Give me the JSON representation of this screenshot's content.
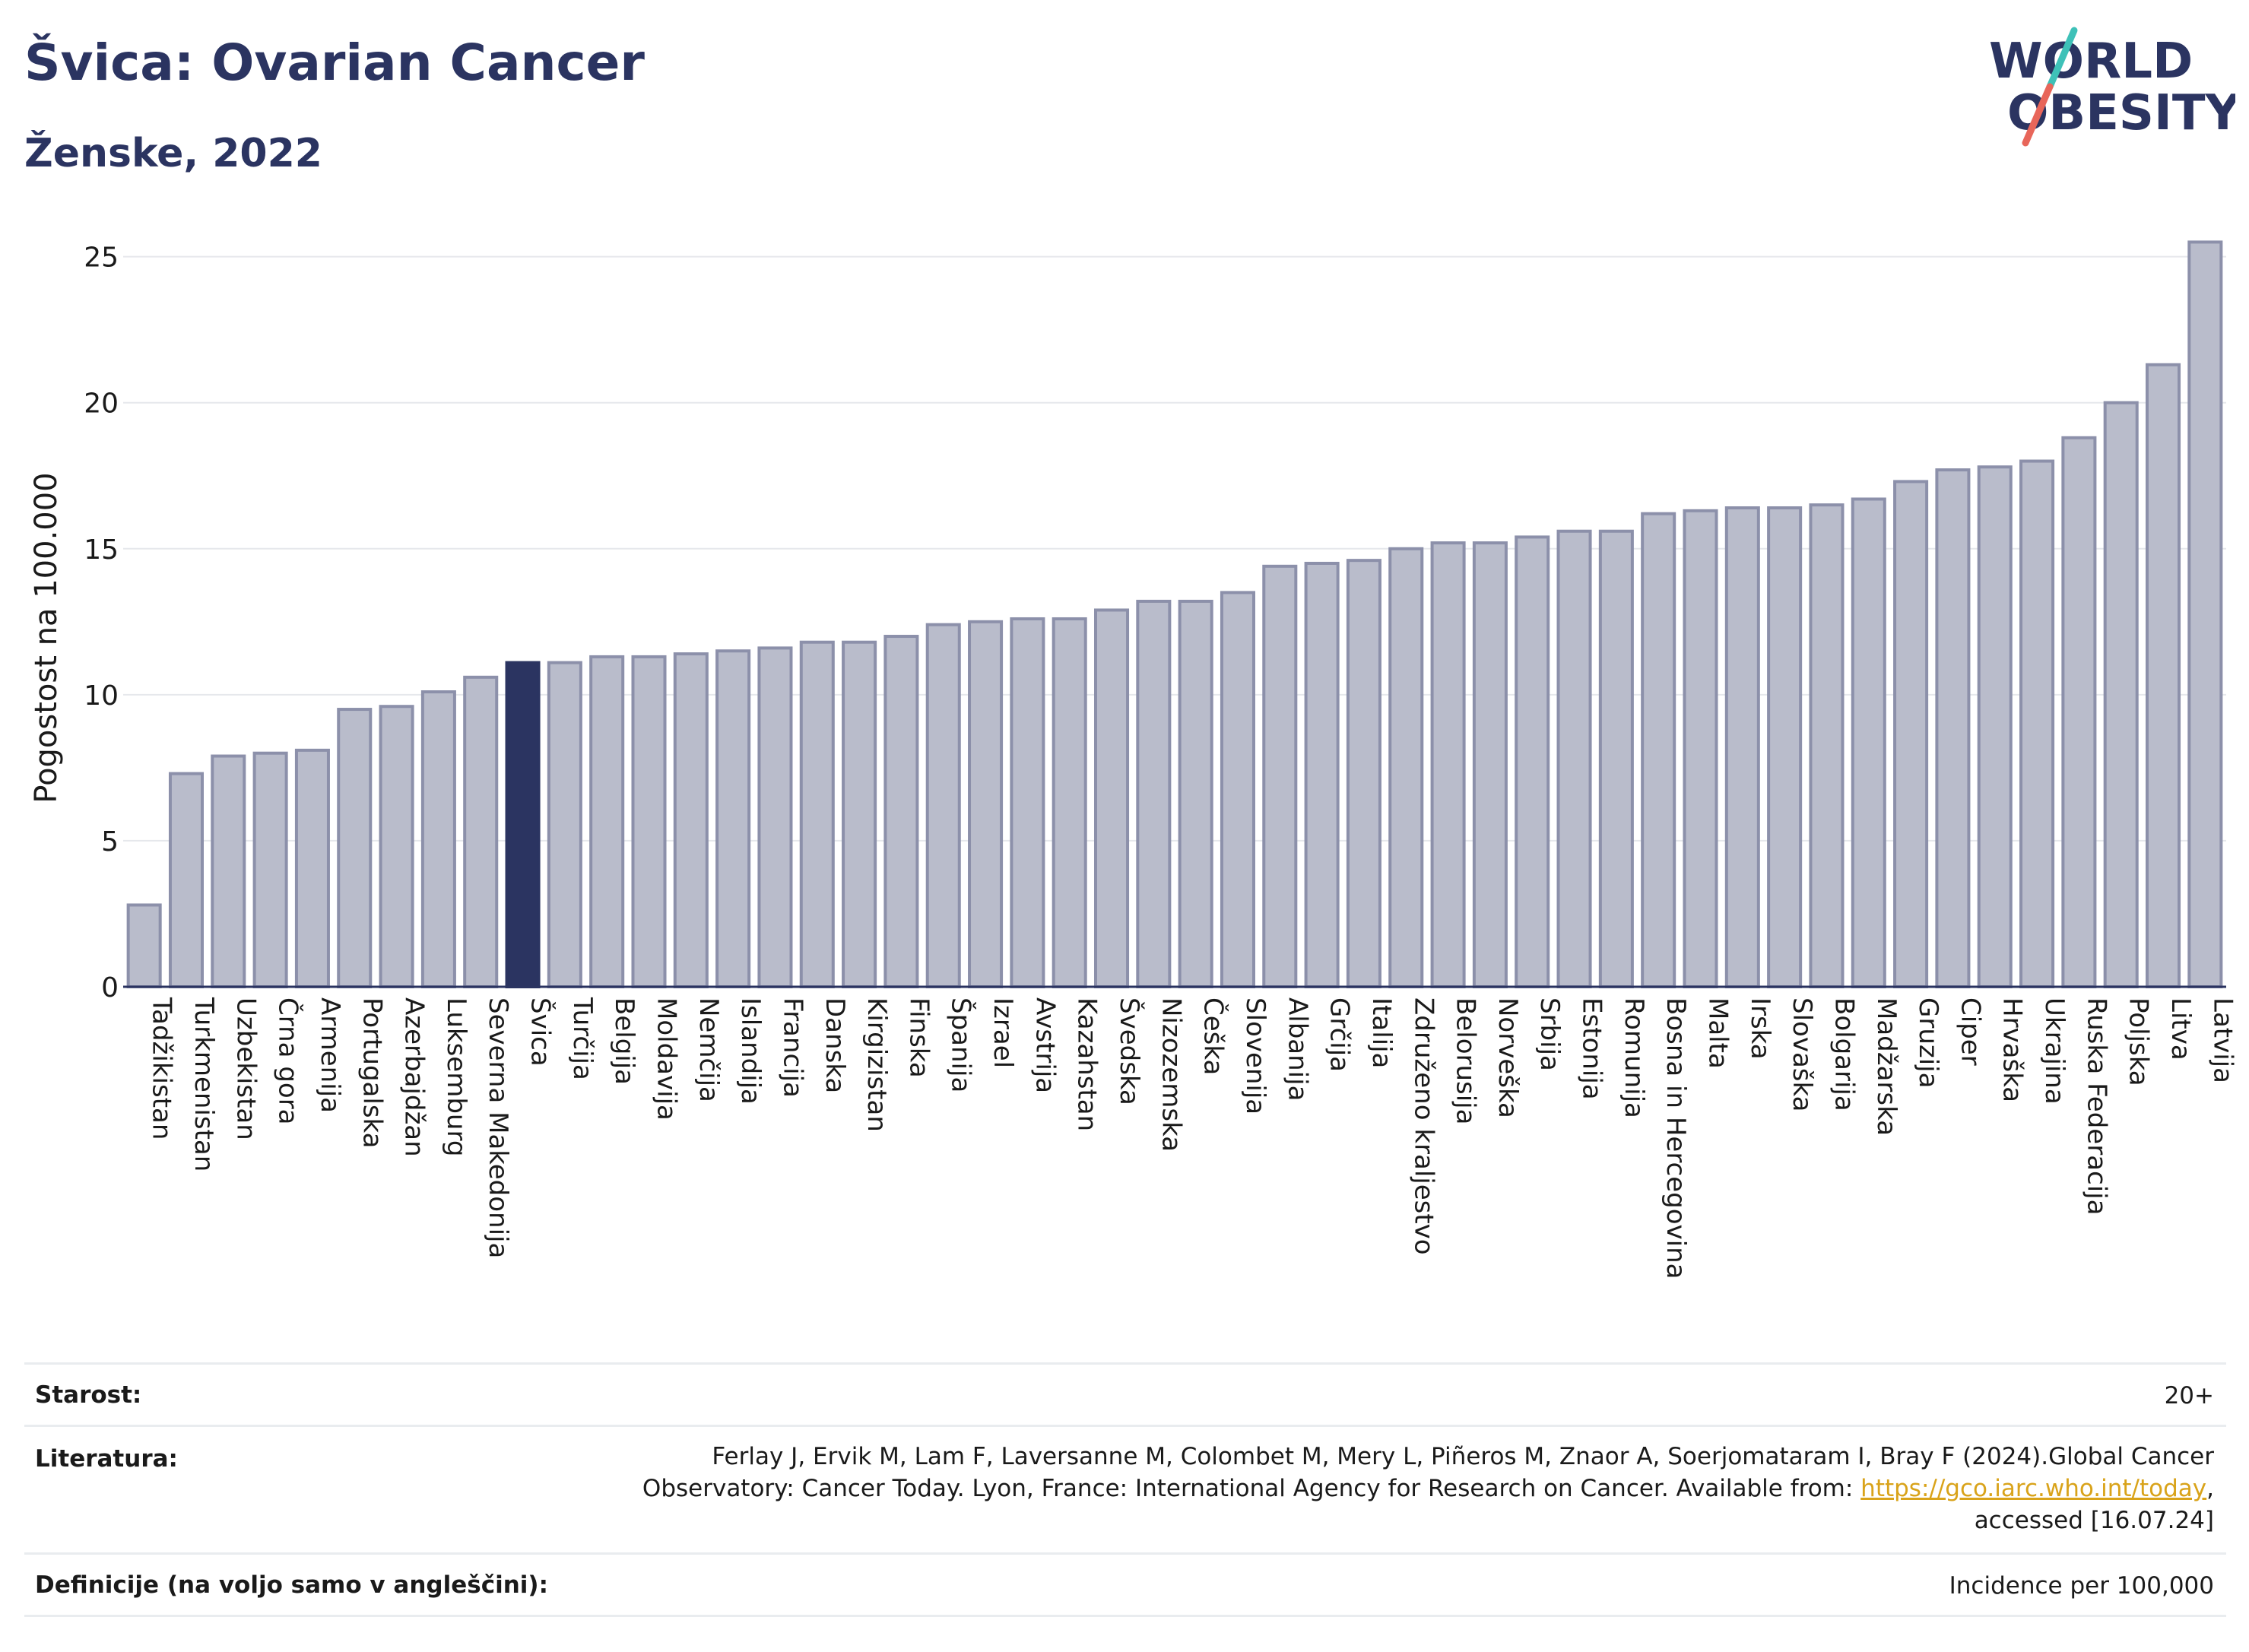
{
  "header": {
    "title": "Švica: Ovarian Cancer",
    "subtitle": "Ženske, 2022"
  },
  "logo": {
    "line1": "WORLD",
    "line2": "OBESITY",
    "colors": {
      "text": "#2b3461",
      "slash_top": "#3ec1b8",
      "slash_bottom": "#e8665a"
    }
  },
  "chart_data": {
    "type": "bar",
    "ylabel": "Pogostost na 100.000",
    "xlabel": "",
    "ylim": [
      0,
      26.5
    ],
    "yticks": [
      0,
      5,
      10,
      15,
      20,
      25
    ],
    "grid": true,
    "highlight": "Švica",
    "colors": {
      "bar": "#b9bccb",
      "bar_edge": "#8c90aa",
      "highlight": "#2b3461"
    },
    "categories": [
      "Tadžikistan",
      "Turkmenistan",
      "Uzbekistan",
      "Črna gora",
      "Armenija",
      "Portugalska",
      "Azerbajdžan",
      "Luksemburg",
      "Severna Makedonija",
      "Švica",
      "Turčija",
      "Belgija",
      "Moldavija",
      "Nemčija",
      "Islandija",
      "Francija",
      "Danska",
      "Kirgizistan",
      "Finska",
      "Španija",
      "Izrael",
      "Avstrija",
      "Kazahstan",
      "Švedska",
      "Nizozemska",
      "Češka",
      "Slovenija",
      "Albanija",
      "Grčija",
      "Italija",
      "Združeno kraljestvo",
      "Belorusija",
      "Norveška",
      "Srbija",
      "Estonija",
      "Romunija",
      "Bosna in Hercegovina",
      "Malta",
      "Irska",
      "Slovaška",
      "Bolgarija",
      "Madžarska",
      "Gruzija",
      "Ciper",
      "Hrvaška",
      "Ukrajina",
      "Ruska Federacija",
      "Poljska",
      "Litva",
      "Latvija"
    ],
    "values": [
      2.8,
      7.3,
      7.9,
      8.0,
      8.1,
      9.5,
      9.6,
      10.1,
      10.6,
      11.1,
      11.1,
      11.3,
      11.3,
      11.4,
      11.5,
      11.6,
      11.8,
      11.8,
      12.0,
      12.4,
      12.5,
      12.6,
      12.6,
      12.9,
      13.2,
      13.2,
      13.5,
      14.4,
      14.5,
      14.6,
      15.0,
      15.2,
      15.2,
      15.4,
      15.6,
      15.6,
      16.2,
      16.3,
      16.4,
      16.4,
      16.5,
      16.7,
      17.3,
      17.7,
      17.8,
      18.0,
      18.8,
      20.0,
      21.3,
      25.5
    ]
  },
  "info": {
    "age_label": "Starost:",
    "age_value": "20+",
    "ref_label": "Literatura:",
    "ref_text_1": "Ferlay J, Ervik M, Lam F, Laversanne M, Colombet M, Mery L, Piñeros M, Znaor A, Soerjomataram I, Bray F (2024).Global Cancer",
    "ref_text_2": "Observatory: Cancer Today. Lyon, France: International Agency for Research on Cancer. Available from: ",
    "ref_link": "https://gco.iarc.who.int/today",
    "ref_text_3": ",",
    "ref_text_4": "accessed [16.07.24]",
    "def_label": "Definicije (na voljo samo v angleščini):",
    "def_value": "Incidence per 100,000"
  }
}
